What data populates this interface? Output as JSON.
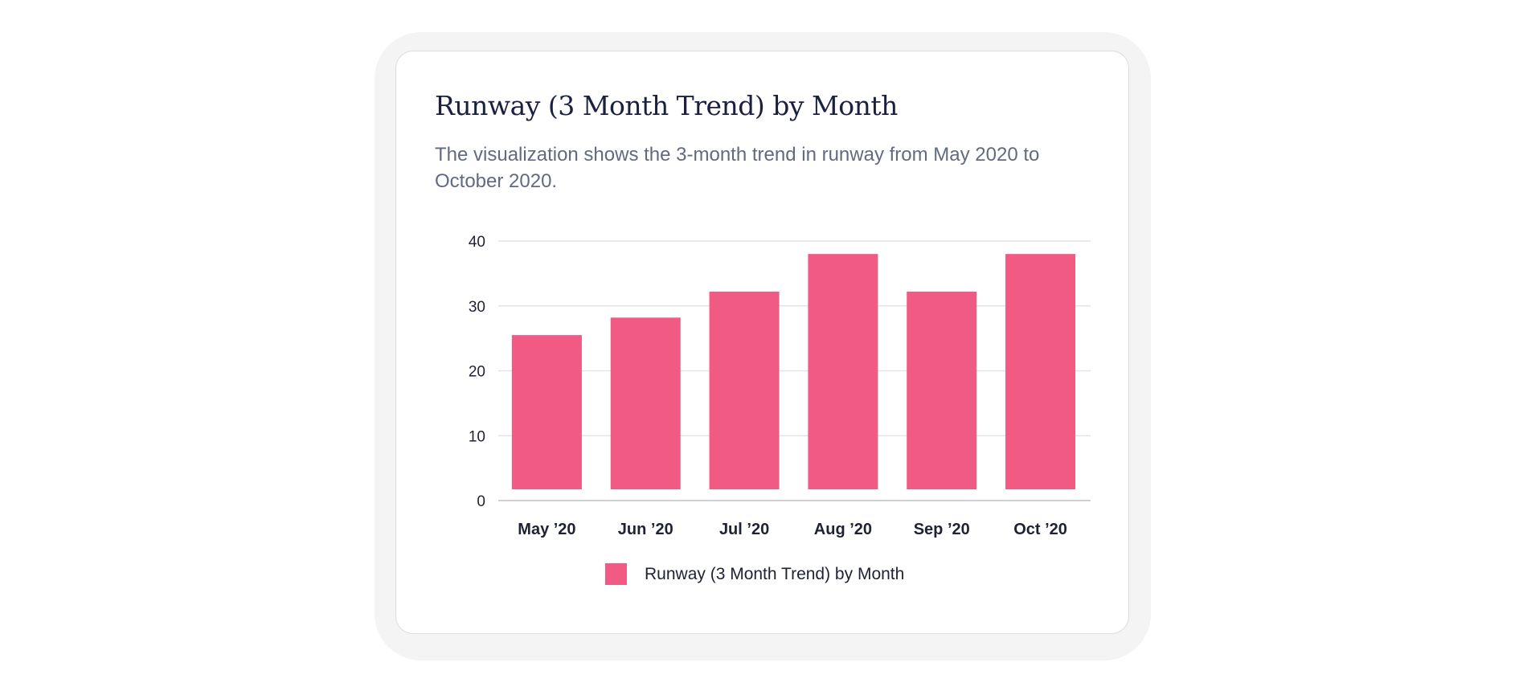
{
  "card": {
    "title": "Runway (3 Month Trend) by Month",
    "subtitle": "The visualization shows the 3-month trend in runway from May 2020 to October 2020."
  },
  "colors": {
    "bar": "#f05a83",
    "grid": "#e4e4e8",
    "axis": "#cfcfd4"
  },
  "chart_data": {
    "type": "bar",
    "categories": [
      "May ’20",
      "Jun ’20",
      "Jul ’20",
      "Aug ’20",
      "Sep ’20",
      "Oct ’20"
    ],
    "series": [
      {
        "name": "Runway (3 Month Trend) by Month",
        "values": [
          25.5,
          28.2,
          32.2,
          38,
          32.2,
          38
        ]
      }
    ],
    "yticks": [
      0,
      10,
      20,
      30,
      40
    ],
    "ylim": [
      0,
      40
    ],
    "grid": true,
    "legend": "bottom-center",
    "title": "Runway (3 Month Trend) by Month",
    "xlabel": "",
    "ylabel": ""
  }
}
